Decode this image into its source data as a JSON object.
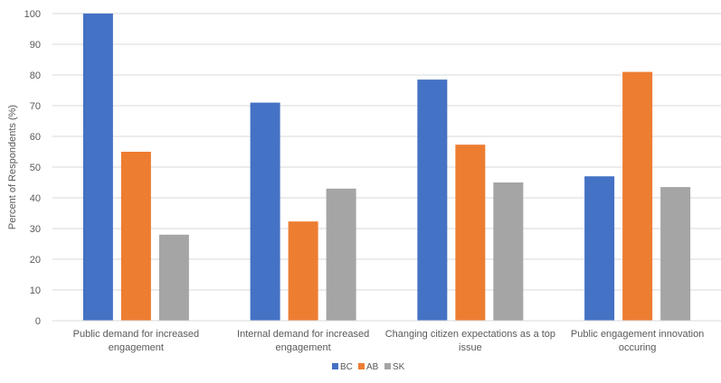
{
  "chart_data": {
    "type": "bar",
    "title": "",
    "xlabel": "",
    "ylabel": "Percent of Respondents (%)",
    "ylim": [
      0,
      100
    ],
    "yticks": [
      0,
      10,
      20,
      30,
      40,
      50,
      60,
      70,
      80,
      90,
      100
    ],
    "grid": true,
    "legend_position": "bottom",
    "categories": [
      [
        "Public demand for increased",
        "engagement"
      ],
      [
        "Internal demand for increased",
        "engagement"
      ],
      [
        "Changing citizen expectations as a top",
        "issue"
      ],
      [
        "Public engagement innovation",
        "occuring"
      ]
    ],
    "series": [
      {
        "name": "BC",
        "color": "#4472C4",
        "values": [
          100,
          71,
          78.5,
          47
        ]
      },
      {
        "name": "AB",
        "color": "#ED7D31",
        "values": [
          55,
          32.3,
          57.3,
          81
        ]
      },
      {
        "name": "SK",
        "color": "#A5A5A5",
        "values": [
          28,
          43,
          45,
          43.5
        ]
      }
    ]
  }
}
